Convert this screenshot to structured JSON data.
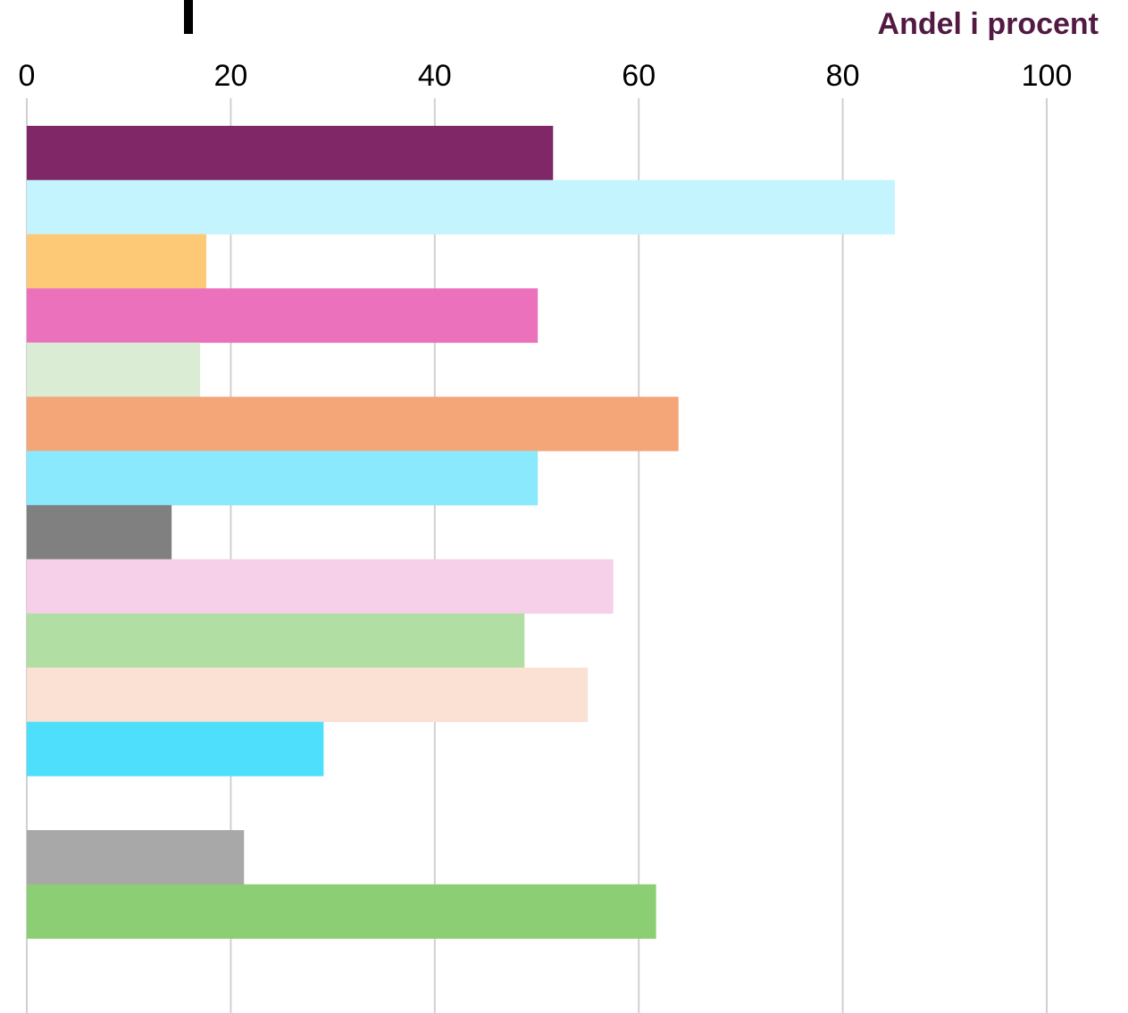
{
  "chart_data": {
    "type": "bar",
    "orientation": "horizontal",
    "title": "",
    "unit_label": "Andel i procent",
    "xlabel": "",
    "ylabel": "",
    "xlim": [
      0,
      100
    ],
    "x_ticks": [
      "0",
      "20",
      "40",
      "60",
      "80",
      "100"
    ],
    "x_axis_position": "top",
    "grid": true,
    "legend": "none",
    "series": [
      {
        "values": [
          51.6,
          85.1,
          17.6,
          50.1,
          17.0,
          63.9,
          50.1,
          14.2,
          57.5,
          48.8,
          55.0,
          29.1,
          null,
          21.3,
          61.7
        ]
      }
    ],
    "bar_colors": [
      "#7f2767",
      "#c4f4fd",
      "#fec976",
      "#eb71bc",
      "#daecd3",
      "#f4a678",
      "#8ae9fc",
      "#808080",
      "#f6cfe9",
      "#b1dea3",
      "#fbe1d4",
      "#4edffd",
      "#ffffff",
      "#a8a8a8",
      "#8cce74"
    ]
  },
  "colors": {
    "unit_label": "#521a43",
    "gridline": "#d0d0d0",
    "text": "#000000"
  }
}
